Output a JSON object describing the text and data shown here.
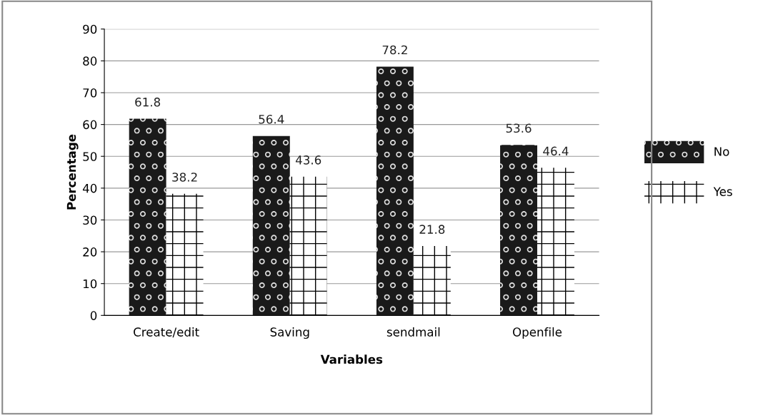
{
  "chart_data": {
    "type": "bar",
    "xlabel": "Variables",
    "ylabel": "Percentage",
    "categories": [
      "Create/edit",
      "Saving",
      "sendmail",
      "Openfile"
    ],
    "series": [
      {
        "name": "No",
        "color": "#1a1a1a",
        "values": [
          61.8,
          56.4,
          78.2,
          53.6
        ]
      },
      {
        "name": "Yes",
        "color": "#ffffff",
        "values": [
          38.2,
          43.6,
          21.8,
          46.4
        ]
      }
    ],
    "ylim": [
      0,
      90
    ],
    "yticks": [
      0,
      10,
      20,
      30,
      40,
      50,
      60,
      70,
      80,
      90
    ],
    "grid": "y",
    "legend": "right",
    "data_labels": true
  }
}
